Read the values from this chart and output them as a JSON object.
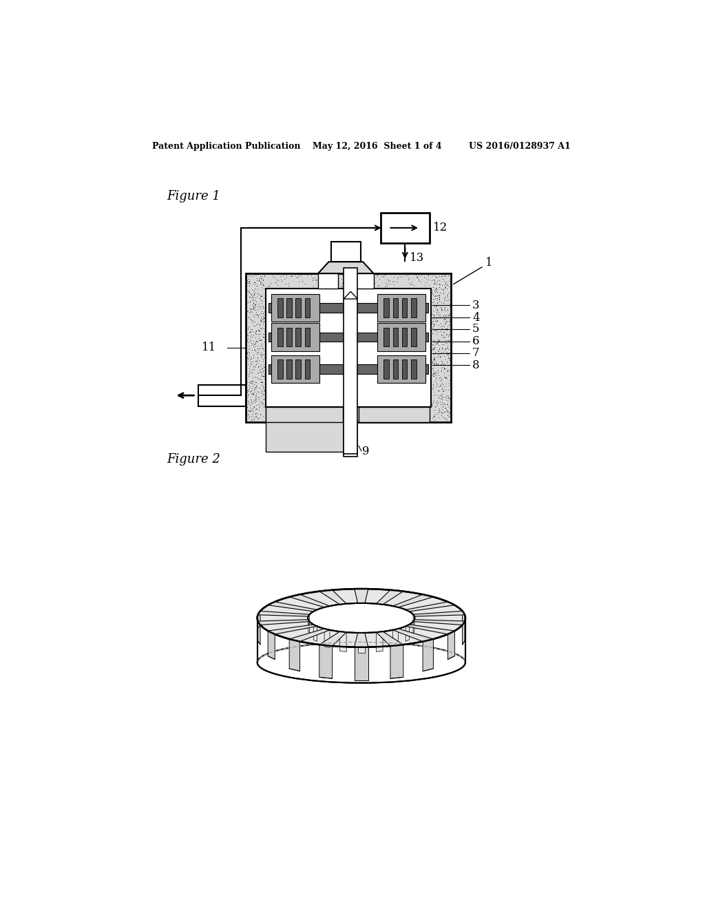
{
  "bg_color": "#ffffff",
  "header": "Patent Application Publication    May 12, 2016  Sheet 1 of 4         US 2016/0128937 A1",
  "fig1_label": "Figure 1",
  "fig2_label": "Figure 2",
  "dot_gray": "#c0c0c0",
  "stator_dark": "#777777",
  "stator_mid": "#aaaaaa",
  "stator_light": "#cccccc"
}
